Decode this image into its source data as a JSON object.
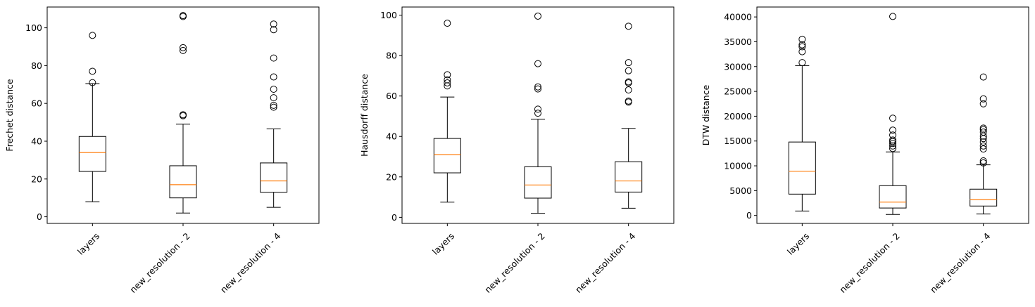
{
  "chart_data": [
    {
      "type": "box",
      "ylabel": "Frechet distance",
      "ylim": [
        -3.5,
        111
      ],
      "yticks": [
        0,
        20,
        40,
        60,
        80,
        100
      ],
      "categories": [
        "layers",
        "new_resolution - 2",
        "new_resolution - 4"
      ],
      "boxes": [
        {
          "whislo": 8,
          "q1": 24,
          "med": 34,
          "q3": 42.5,
          "whishi": 70.5,
          "fliers": [
            71,
            77,
            96
          ]
        },
        {
          "whislo": 2,
          "q1": 10,
          "med": 17,
          "q3": 27,
          "whishi": 49,
          "fliers": [
            53.5,
            54,
            88,
            89.5,
            106,
            106.5
          ]
        },
        {
          "whislo": 5,
          "q1": 13,
          "med": 19,
          "q3": 28.5,
          "whishi": 46.5,
          "fliers": [
            58,
            59,
            63,
            67.5,
            74,
            84,
            99,
            102
          ]
        }
      ]
    },
    {
      "type": "box",
      "ylabel": "Hausdorff distance",
      "ylim": [
        -3,
        104
      ],
      "yticks": [
        0,
        20,
        40,
        60,
        80,
        100
      ],
      "categories": [
        "layers",
        "new_resolution - 2",
        "new_resolution - 4"
      ],
      "boxes": [
        {
          "whislo": 7.5,
          "q1": 22,
          "med": 31,
          "q3": 39,
          "whishi": 59.5,
          "fliers": [
            65,
            66.5,
            68,
            70.5,
            96
          ]
        },
        {
          "whislo": 2,
          "q1": 9.5,
          "med": 16,
          "q3": 25,
          "whishi": 48.5,
          "fliers": [
            51.5,
            53.5,
            63.5,
            64.5,
            76,
            99.5
          ]
        },
        {
          "whislo": 4.5,
          "q1": 12.5,
          "med": 18,
          "q3": 27.5,
          "whishi": 44,
          "fliers": [
            57,
            57.5,
            63,
            66.5,
            67,
            72.5,
            76.5,
            94.5
          ]
        }
      ]
    },
    {
      "type": "box",
      "ylabel": "DTW distance",
      "ylim": [
        -1600,
        42000
      ],
      "yticks": [
        0,
        5000,
        10000,
        15000,
        20000,
        25000,
        30000,
        35000,
        40000
      ],
      "categories": [
        "layers",
        "new_resolution - 2",
        "new_resolution - 4"
      ],
      "boxes": [
        {
          "whislo": 900,
          "q1": 4300,
          "med": 8900,
          "q3": 14800,
          "whishi": 30200,
          "fliers": [
            30800,
            33000,
            34000,
            34400,
            35500
          ]
        },
        {
          "whislo": 200,
          "q1": 1500,
          "med": 2700,
          "q3": 6000,
          "whishi": 12800,
          "fliers": [
            13500,
            14000,
            14500,
            14900,
            15200,
            16200,
            17200,
            19600,
            40100
          ]
        },
        {
          "whislo": 300,
          "q1": 1900,
          "med": 3200,
          "q3": 5300,
          "whishi": 10200,
          "fliers": [
            10600,
            11000,
            13400,
            14000,
            14800,
            15500,
            16000,
            16800,
            17300,
            17600,
            22500,
            23500,
            27900
          ]
        }
      ]
    }
  ]
}
